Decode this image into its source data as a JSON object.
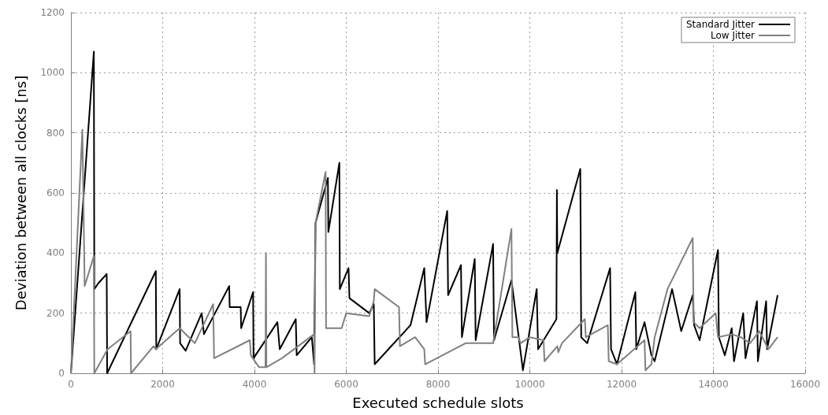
{
  "chart_data": {
    "type": "line",
    "xlabel": "Executed schedule slots",
    "ylabel": "Deviation between all clocks [ns]",
    "xlim": [
      0,
      16000
    ],
    "xticks": [
      0,
      2000,
      4000,
      6000,
      8000,
      10000,
      12000,
      14000,
      16000
    ],
    "ylim": [
      0,
      1200
    ],
    "yticks": [
      0,
      200,
      400,
      600,
      800,
      1000,
      1200
    ],
    "grid": true,
    "legend": "top right",
    "marker": "none",
    "line_style": "solid",
    "series": [
      {
        "name": "Standard Jitter",
        "color": "#000000",
        "x": [
          0,
          500,
          510,
          600,
          780,
          790,
          1850,
          1860,
          2370,
          2380,
          2500,
          2850,
          2900,
          3450,
          3460,
          3700,
          3710,
          3970,
          3980,
          4500,
          4550,
          4900,
          4920,
          5250,
          5300,
          5330,
          5600,
          5610,
          5850,
          5860,
          6050,
          6070,
          6500,
          6600,
          6620,
          7400,
          7700,
          7750,
          8200,
          8220,
          8500,
          8520,
          8800,
          8820,
          9200,
          9220,
          9600,
          9850,
          10150,
          10180,
          10580,
          10590,
          10600,
          11100,
          11120,
          11250,
          11750,
          11770,
          11900,
          12300,
          12320,
          12500,
          12650,
          12720,
          13100,
          13300,
          13550,
          13580,
          13700,
          14100,
          14120,
          14250,
          14400,
          14450,
          14650,
          14700,
          14950,
          14970,
          15150,
          15170,
          15400
        ],
        "values": [
          0,
          1070,
          280,
          300,
          330,
          0,
          340,
          80,
          280,
          100,
          75,
          200,
          130,
          290,
          220,
          220,
          150,
          270,
          50,
          170,
          80,
          180,
          60,
          120,
          30,
          500,
          650,
          470,
          700,
          280,
          350,
          250,
          200,
          230,
          30,
          160,
          350,
          170,
          540,
          260,
          360,
          120,
          380,
          110,
          430,
          110,
          310,
          10,
          280,
          80,
          180,
          610,
          400,
          680,
          120,
          100,
          350,
          80,
          30,
          270,
          80,
          170,
          60,
          40,
          280,
          140,
          260,
          160,
          110,
          410,
          120,
          60,
          150,
          40,
          200,
          50,
          240,
          40,
          240,
          80,
          260
        ]
      },
      {
        "name": "Low Jitter",
        "color": "#808080",
        "x": [
          0,
          250,
          300,
          500,
          510,
          800,
          1300,
          1310,
          1800,
          1850,
          2370,
          2700,
          3100,
          3120,
          3900,
          3920,
          4100,
          4240,
          4250,
          4260,
          4600,
          5300,
          5310,
          5330,
          5550,
          5560,
          5900,
          6000,
          6500,
          6600,
          6620,
          7150,
          7170,
          7500,
          7700,
          7720,
          8600,
          9200,
          9600,
          9620,
          9750,
          9800,
          10000,
          10300,
          10320,
          10600,
          10620,
          10700,
          11200,
          11220,
          11700,
          11720,
          11900,
          12200,
          12500,
          12520,
          12650,
          12720,
          13000,
          13550,
          13570,
          13700,
          14050,
          14100,
          14400,
          14600,
          14800,
          15000,
          15200,
          15400
        ],
        "values": [
          0,
          810,
          290,
          390,
          0,
          80,
          140,
          0,
          90,
          80,
          150,
          100,
          230,
          50,
          110,
          60,
          20,
          20,
          400,
          20,
          50,
          130,
          0,
          500,
          670,
          150,
          150,
          200,
          190,
          240,
          280,
          220,
          90,
          120,
          80,
          30,
          100,
          100,
          480,
          120,
          120,
          100,
          120,
          110,
          40,
          90,
          70,
          100,
          180,
          120,
          160,
          40,
          30,
          70,
          110,
          10,
          30,
          120,
          280,
          450,
          170,
          150,
          200,
          120,
          130,
          120,
          100,
          140,
          80,
          120
        ]
      }
    ]
  }
}
